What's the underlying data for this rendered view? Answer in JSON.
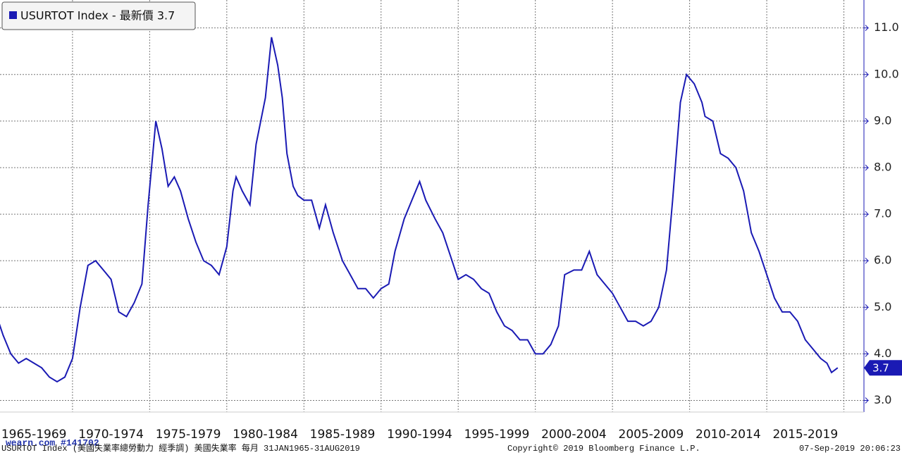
{
  "chart_data": {
    "type": "line",
    "series": [
      {
        "name": "USURTOT Index - 最新價 3.7",
        "color": "#1a1ab4",
        "x": [
          1965.0,
          1965.5,
          1966.0,
          1966.5,
          1967.0,
          1967.5,
          1968.0,
          1968.5,
          1969.0,
          1969.5,
          1970.0,
          1970.5,
          1971.0,
          1971.5,
          1972.0,
          1972.5,
          1973.0,
          1973.5,
          1974.0,
          1974.5,
          1974.9,
          1975.4,
          1975.8,
          1976.2,
          1976.6,
          1977.0,
          1977.5,
          1978.0,
          1978.5,
          1979.0,
          1979.5,
          1980.0,
          1980.4,
          1980.6,
          1981.0,
          1981.5,
          1981.9,
          1982.5,
          1982.9,
          1983.3,
          1983.6,
          1983.9,
          1984.3,
          1984.6,
          1985.0,
          1985.5,
          1986.0,
          1986.4,
          1986.9,
          1987.5,
          1988.0,
          1988.5,
          1989.0,
          1989.5,
          1990.0,
          1990.5,
          1990.9,
          1991.5,
          1992.0,
          1992.5,
          1992.9,
          1993.5,
          1994.0,
          1994.5,
          1995.0,
          1995.5,
          1996.0,
          1996.5,
          1997.0,
          1997.5,
          1998.0,
          1998.5,
          1999.0,
          1999.5,
          2000.0,
          2000.5,
          2001.0,
          2001.5,
          2001.9,
          2002.5,
          2003.0,
          2003.5,
          2004.0,
          2004.5,
          2005.0,
          2005.5,
          2006.0,
          2006.5,
          2007.0,
          2007.5,
          2008.0,
          2008.5,
          2008.9,
          2009.4,
          2009.8,
          2010.3,
          2010.8,
          2011.0,
          2011.5,
          2012.0,
          2012.5,
          2013.0,
          2013.5,
          2014.0,
          2014.5,
          2015.0,
          2015.5,
          2016.0,
          2016.5,
          2017.0,
          2017.5,
          2018.0,
          2018.5,
          2018.9,
          2019.2,
          2019.6
        ],
        "values": [
          4.9,
          4.4,
          4.0,
          3.8,
          3.9,
          3.8,
          3.7,
          3.5,
          3.4,
          3.5,
          3.9,
          5.0,
          5.9,
          6.0,
          5.8,
          5.6,
          4.9,
          4.8,
          5.1,
          5.5,
          7.2,
          9.0,
          8.4,
          7.6,
          7.8,
          7.5,
          6.9,
          6.4,
          6.0,
          5.9,
          5.7,
          6.3,
          7.5,
          7.8,
          7.5,
          7.2,
          8.5,
          9.5,
          10.8,
          10.2,
          9.5,
          8.3,
          7.6,
          7.4,
          7.3,
          7.3,
          6.7,
          7.2,
          6.6,
          6.0,
          5.7,
          5.4,
          5.4,
          5.2,
          5.4,
          5.5,
          6.2,
          6.9,
          7.3,
          7.7,
          7.3,
          6.9,
          6.6,
          6.1,
          5.6,
          5.7,
          5.6,
          5.4,
          5.3,
          4.9,
          4.6,
          4.5,
          4.3,
          4.3,
          4.0,
          4.0,
          4.2,
          4.6,
          5.7,
          5.8,
          5.8,
          6.2,
          5.7,
          5.5,
          5.3,
          5.0,
          4.7,
          4.7,
          4.6,
          4.7,
          5.0,
          5.8,
          7.3,
          9.4,
          10.0,
          9.8,
          9.4,
          9.1,
          9.0,
          8.3,
          8.2,
          8.0,
          7.5,
          6.6,
          6.2,
          5.7,
          5.2,
          4.9,
          4.9,
          4.7,
          4.3,
          4.1,
          3.9,
          3.8,
          3.6,
          3.7
        ]
      }
    ],
    "xlim": [
      1965.3,
      2021.3
    ],
    "xticks": [
      {
        "value": 1965,
        "label": "1965-1969"
      },
      {
        "value": 1970,
        "label": "1970-1974"
      },
      {
        "value": 1975,
        "label": "1975-1979"
      },
      {
        "value": 1980,
        "label": "1980-1984"
      },
      {
        "value": 1985,
        "label": "1985-1989"
      },
      {
        "value": 1990,
        "label": "1990-1994"
      },
      {
        "value": 1995,
        "label": "1995-1999"
      },
      {
        "value": 2000,
        "label": "2000-2004"
      },
      {
        "value": 2005,
        "label": "2005-2009"
      },
      {
        "value": 2010,
        "label": "2010-2014"
      },
      {
        "value": 2015,
        "label": "2015-2019"
      },
      {
        "value": 2020,
        "label": ""
      }
    ],
    "ylim": [
      2.75,
      11.6
    ],
    "yticks": [
      {
        "value": 3,
        "label": "3.0"
      },
      {
        "value": 4,
        "label": "4.0"
      },
      {
        "value": 5,
        "label": "5.0"
      },
      {
        "value": 6,
        "label": "6.0"
      },
      {
        "value": 7,
        "label": "7.0"
      },
      {
        "value": 8,
        "label": "8.0"
      },
      {
        "value": 9,
        "label": "9.0"
      },
      {
        "value": 10,
        "label": "10.0"
      },
      {
        "value": 11,
        "label": "11.0"
      }
    ],
    "grid": true,
    "footer_left": "USURTOT Index (美國失業率總勞動力 經季調) 美國失業率  每月 31JAN1965-31AUG2019",
    "copyright": "Copyright© 2019 Bloomberg Finance L.P.",
    "timestamp": "07-Sep-2019 20:06:23",
    "watermark": "wearn.com #141702"
  }
}
